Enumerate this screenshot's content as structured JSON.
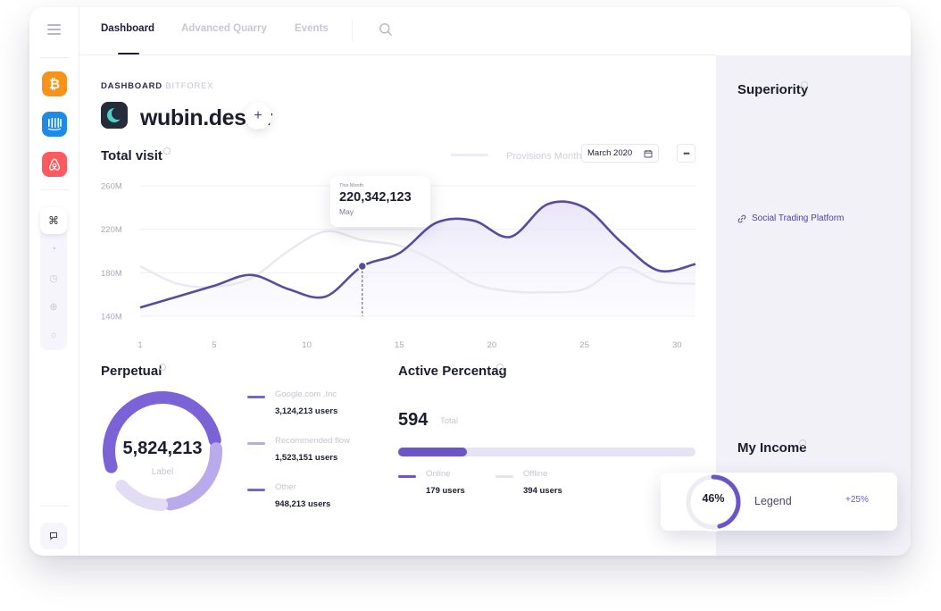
{
  "nav": {
    "tabs": [
      {
        "label": "Dashboard",
        "active": true
      },
      {
        "label": "Advanced Quarry",
        "active": false
      },
      {
        "label": "Events",
        "active": false
      }
    ]
  },
  "rail": {
    "apps": [
      "bitcoin-icon",
      "intercom-icon",
      "airbnb-icon"
    ],
    "tools": [
      "command-icon",
      "pie-icon",
      "clock-icon",
      "globe-icon",
      "sun-icon"
    ]
  },
  "header": {
    "crumb_main": "DASHBOARD",
    "crumb_sub": "BITFOREX",
    "brand": "wubin.design",
    "add_symbol": "+"
  },
  "visits": {
    "title": "Total visit",
    "legend": "Provisions Month",
    "date": "March 2020",
    "more": "•••",
    "tooltip": {
      "caption": "This Month",
      "value": "220,342,123",
      "month": "May"
    }
  },
  "chart_data": {
    "type": "line",
    "x": [
      1,
      3,
      5,
      7,
      9,
      11,
      13,
      15,
      17,
      19,
      21,
      23,
      25,
      27,
      29,
      31
    ],
    "x_ticks": [
      "1",
      "5",
      "10",
      "15",
      "20",
      "25",
      "30"
    ],
    "y_ticks": [
      "260M",
      "220M",
      "180M",
      "140M"
    ],
    "ylim": [
      140,
      260
    ],
    "y_unit": "M",
    "series": [
      {
        "color": "#5a4a9e",
        "values": [
          148,
          158,
          168,
          178,
          165,
          158,
          186,
          198,
          226,
          228,
          213,
          243,
          240,
          208,
          182,
          188
        ]
      },
      {
        "color": "#e8e8f0",
        "values": [
          186,
          170,
          167,
          175,
          200,
          218,
          210,
          205,
          190,
          170,
          163,
          162,
          165,
          185,
          172,
          170
        ]
      }
    ],
    "highlight_x": 13,
    "grid": true
  },
  "perpetual": {
    "title": "Perpetual",
    "total": "5,824,213",
    "label": "Label",
    "items": [
      {
        "name": "Google.com .Inc",
        "value": "3,124,213 users",
        "color": "#7b62d6"
      },
      {
        "name": "Recommended flow",
        "value": "1,523,151 users",
        "color": "#b8aaeb"
      },
      {
        "name": "Other",
        "value": "948,213 users",
        "color": "#7b62d6"
      }
    ],
    "segments": [
      0.54,
      0.26,
      0.16
    ]
  },
  "active": {
    "title": "Active Percentage",
    "count": "594",
    "total_label": "Total",
    "online_fraction": 0.23,
    "online": {
      "name": "Online",
      "value": "179 users",
      "color": "#6c55c7"
    },
    "offline": {
      "name": "Offline",
      "value": "394 users",
      "color": "#e3e0f3"
    }
  },
  "right_panel": {
    "title": "Superiority",
    "link": "Social Trading Platform",
    "income_title": "My Income"
  },
  "legend_card": {
    "percent": "46%",
    "fraction": 0.46,
    "label": "Legend",
    "delta": "+25%"
  }
}
